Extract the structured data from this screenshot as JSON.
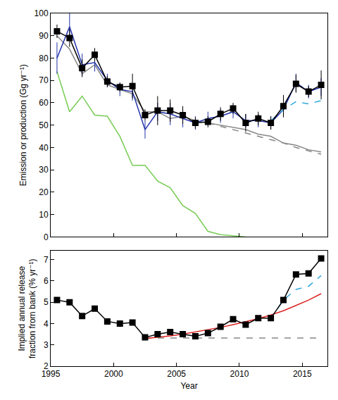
{
  "chart_data": [
    {
      "type": "line",
      "ylabel": "Emission or production (Gg yr⁻¹)",
      "x": [
        1995.5,
        1996.5,
        1997.5,
        1998.5,
        1999.5,
        2000.5,
        2001.5,
        2002.5,
        2003.5,
        2004.5,
        2005.5,
        2006.5,
        2007.5,
        2008.5,
        2009.5,
        2010.5,
        2011.5,
        2012.5,
        2013.5,
        2014.5,
        2015.5,
        2016.5
      ],
      "xlim": [
        1995,
        2017
      ],
      "xticks": [
        1995,
        2000,
        2005,
        2010,
        2015
      ],
      "ylim": [
        0,
        100
      ],
      "yticks": [
        0,
        10,
        20,
        30,
        40,
        50,
        60,
        70,
        80,
        90,
        100
      ],
      "grid": false,
      "tick_labels": "y",
      "series": [
        {
          "color": "#77cc55",
          "line_style": "solid",
          "marker": "none",
          "values": [
            74,
            56,
            63,
            54.5,
            54,
            45,
            32,
            32,
            25,
            22,
            14,
            10.5,
            2.5,
            1,
            0.5,
            0,
            null,
            null,
            null,
            null,
            null,
            null
          ]
        },
        {
          "color": "#888888",
          "line_style": "solid",
          "marker": "none",
          "values": [
            90,
            84,
            73,
            77,
            68,
            66,
            64,
            56,
            56,
            53,
            54,
            52,
            51,
            50,
            49,
            48,
            46,
            45,
            42,
            41,
            39,
            38
          ]
        },
        {
          "color": "#888888",
          "line_style": "dash",
          "marker": "none",
          "values": [
            null,
            null,
            null,
            null,
            null,
            null,
            null,
            null,
            null,
            null,
            null,
            null,
            51,
            49.5,
            48,
            46.5,
            45,
            43.5,
            42,
            40,
            38.5,
            37
          ]
        },
        {
          "color": "#2233aa",
          "line_style": "solid",
          "marker": "none",
          "values": [
            80,
            94,
            77,
            78,
            70,
            66,
            65,
            48,
            56,
            55,
            53,
            51,
            53,
            54,
            56,
            52,
            52,
            51,
            57,
            69,
            65,
            67
          ],
          "error": [
            7,
            6,
            5,
            4,
            3,
            3,
            4,
            4,
            4,
            5,
            4,
            3,
            3,
            3,
            3,
            3,
            3,
            3,
            3,
            4,
            3,
            4
          ]
        },
        {
          "color": "#33aadd",
          "line_style": "dash",
          "marker": "none",
          "values": [
            null,
            null,
            null,
            null,
            null,
            null,
            null,
            null,
            null,
            null,
            null,
            null,
            null,
            null,
            null,
            null,
            null,
            52,
            57,
            60.5,
            59.5,
            61
          ]
        },
        {
          "color": "#000000",
          "line_style": "solid",
          "marker": "square",
          "values": [
            92,
            89,
            75.5,
            81.5,
            69.5,
            67,
            67.5,
            54.5,
            56.5,
            56.5,
            54.5,
            51,
            51.5,
            55,
            57.5,
            51,
            53,
            51,
            58.5,
            68.5,
            65,
            68
          ],
          "error": [
            3,
            4,
            4,
            3,
            2.5,
            2,
            5.5,
            2.5,
            6.5,
            5,
            4,
            2.5,
            2.5,
            3,
            2.5,
            4,
            3,
            3,
            5,
            4,
            2.5,
            6.5
          ]
        }
      ]
    },
    {
      "type": "line",
      "xlabel": "Year",
      "ylabel": "Implied annual release\nfraction from bank (% yr⁻¹)",
      "x": [
        1995.5,
        1996.5,
        1997.5,
        1998.5,
        1999.5,
        2000.5,
        2001.5,
        2002.5,
        2003.5,
        2004.5,
        2005.5,
        2006.5,
        2007.5,
        2008.5,
        2009.5,
        2010.5,
        2011.5,
        2012.5,
        2013.5,
        2014.5,
        2015.5,
        2016.5
      ],
      "xlim": [
        1995,
        2017
      ],
      "xticks": [
        1995,
        2000,
        2005,
        2010,
        2015
      ],
      "ylim": [
        2,
        7.4
      ],
      "yticks": [
        2,
        3,
        4,
        5,
        6,
        7
      ],
      "grid": false,
      "series": [
        {
          "color": "#888888",
          "line_style": "dash",
          "marker": "none",
          "values": [
            null,
            null,
            null,
            null,
            null,
            null,
            null,
            3.32,
            3.32,
            3.32,
            3.32,
            3.32,
            3.32,
            3.32,
            3.32,
            3.32,
            3.32,
            3.32,
            3.32,
            3.32,
            3.32,
            3.32
          ]
        },
        {
          "color": "#dd2222",
          "line_style": "solid",
          "marker": "none",
          "values": [
            null,
            null,
            null,
            null,
            null,
            null,
            null,
            3.3,
            3.35,
            3.42,
            3.5,
            3.6,
            3.7,
            3.82,
            3.95,
            4.08,
            4.23,
            4.4,
            4.6,
            4.85,
            5.1,
            5.4
          ]
        },
        {
          "color": "#33aadd",
          "line_style": "dash",
          "marker": "none",
          "values": [
            null,
            null,
            null,
            null,
            null,
            null,
            null,
            null,
            null,
            null,
            null,
            null,
            null,
            null,
            null,
            null,
            null,
            4.25,
            5.1,
            5.6,
            5.75,
            6.25
          ]
        },
        {
          "color": "#000000",
          "line_style": "solid",
          "marker": "square",
          "values": [
            5.1,
            5.0,
            4.35,
            4.7,
            4.1,
            4.0,
            4.05,
            3.35,
            3.5,
            3.6,
            3.5,
            3.4,
            3.55,
            3.85,
            4.2,
            3.95,
            4.25,
            4.25,
            5.1,
            6.3,
            6.35,
            7.05
          ]
        }
      ]
    }
  ]
}
